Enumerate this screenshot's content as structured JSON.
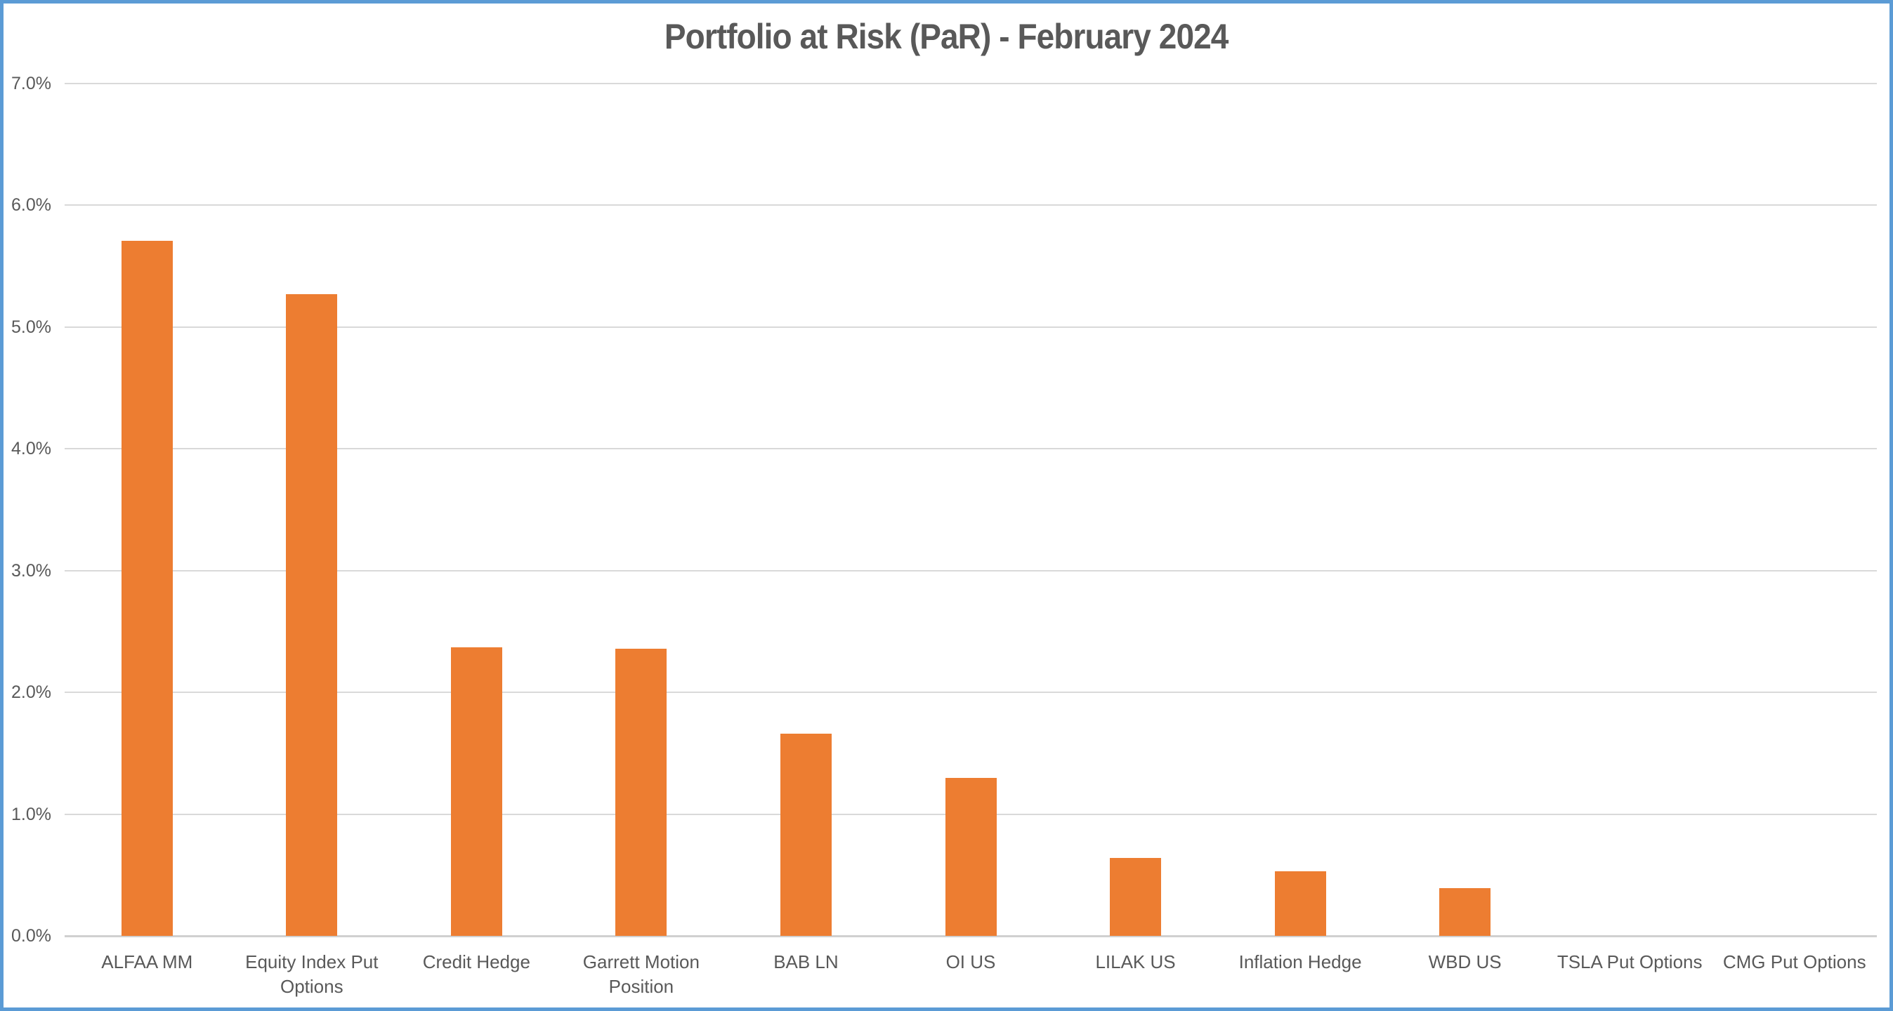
{
  "chart_data": {
    "type": "bar",
    "title": "Portfolio at Risk (PaR) - February 2024",
    "categories": [
      "ALFAA MM",
      "Equity Index Put Options",
      "Credit Hedge",
      "Garrett Motion Position",
      "BAB LN",
      "OI US",
      "LILAK US",
      "Inflation Hedge",
      "WBD US",
      "TSLA Put Options",
      "CMG Put Options"
    ],
    "values": [
      5.71,
      5.27,
      2.37,
      2.36,
      1.66,
      1.3,
      0.64,
      0.53,
      0.39,
      0.0,
      0.0
    ],
    "values_unit": "%",
    "xlabel": "",
    "ylabel": "",
    "ylim": [
      0,
      7
    ],
    "yticks": [
      "7.0%",
      "6.0%",
      "5.0%",
      "4.0%",
      "3.0%",
      "2.0%",
      "1.0%",
      "0.0%"
    ],
    "grid": "horizontal",
    "legend": "none",
    "colors": {
      "bar": "#ED7D31",
      "gridline": "#D9D9D9",
      "axis_line": "#D0D0D0",
      "text": "#595959",
      "frame_border": "#5B9BD5",
      "background": "#FFFFFF"
    }
  }
}
